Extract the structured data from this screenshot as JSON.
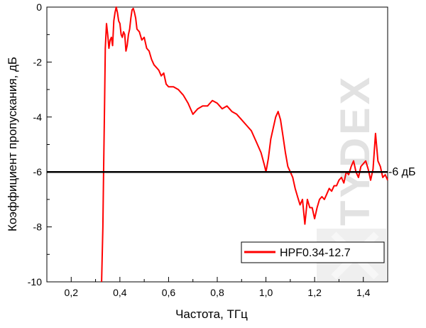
{
  "chart_data": {
    "type": "line",
    "title": "",
    "xlabel": "Частота, ТГц",
    "ylabel": "Коэффициент пропускания, дБ",
    "xlim": [
      0.1,
      1.5
    ],
    "ylim": [
      -10,
      0
    ],
    "xticks": [
      0.2,
      0.4,
      0.6,
      0.8,
      1.0,
      1.2,
      1.4
    ],
    "xtick_labels": [
      "0,2",
      "0,4",
      "0,6",
      "0,8",
      "1,0",
      "1,2",
      "1,4"
    ],
    "yticks": [
      0,
      -2,
      -4,
      -6,
      -8,
      -10
    ],
    "ytick_labels": [
      "0",
      "-2",
      "-4",
      "-6",
      "-8",
      "-10"
    ],
    "grid": false,
    "legend": {
      "placement": "bottom-right",
      "entries": [
        "HPF0.34-12.7"
      ]
    },
    "series": [
      {
        "name": "HPF0.34-12.7",
        "color": "#ff0000",
        "x": [
          0.325,
          0.33,
          0.333,
          0.337,
          0.34,
          0.345,
          0.35,
          0.355,
          0.36,
          0.365,
          0.37,
          0.375,
          0.38,
          0.385,
          0.39,
          0.395,
          0.4,
          0.405,
          0.41,
          0.415,
          0.42,
          0.425,
          0.43,
          0.435,
          0.44,
          0.445,
          0.45,
          0.455,
          0.46,
          0.465,
          0.47,
          0.48,
          0.49,
          0.5,
          0.51,
          0.52,
          0.53,
          0.54,
          0.55,
          0.56,
          0.57,
          0.58,
          0.59,
          0.6,
          0.62,
          0.64,
          0.66,
          0.68,
          0.7,
          0.72,
          0.74,
          0.76,
          0.78,
          0.8,
          0.82,
          0.84,
          0.86,
          0.88,
          0.9,
          0.92,
          0.94,
          0.96,
          0.98,
          0.995,
          1.0,
          1.01,
          1.02,
          1.04,
          1.05,
          1.06,
          1.07,
          1.08,
          1.09,
          1.1,
          1.11,
          1.12,
          1.13,
          1.14,
          1.15,
          1.16,
          1.17,
          1.18,
          1.19,
          1.2,
          1.21,
          1.22,
          1.23,
          1.24,
          1.25,
          1.26,
          1.27,
          1.28,
          1.29,
          1.3,
          1.31,
          1.32,
          1.33,
          1.34,
          1.35,
          1.36,
          1.37,
          1.38,
          1.39,
          1.4,
          1.41,
          1.42,
          1.43,
          1.44,
          1.45,
          1.46,
          1.47,
          1.48,
          1.49,
          1.5
        ],
        "y": [
          -10.0,
          -8.0,
          -6.0,
          -3.5,
          -1.5,
          -0.6,
          -1.0,
          -1.5,
          -1.2,
          -1.1,
          -1.4,
          -0.5,
          -0.2,
          0.0,
          -0.2,
          -0.5,
          -0.6,
          -1.0,
          -1.1,
          -0.9,
          -1.0,
          -1.6,
          -1.4,
          -1.0,
          -0.8,
          -0.4,
          -0.1,
          -0.05,
          -0.2,
          -0.4,
          -0.8,
          -0.9,
          -1.2,
          -1.1,
          -1.5,
          -1.6,
          -1.9,
          -2.1,
          -2.2,
          -2.3,
          -2.5,
          -2.4,
          -2.8,
          -2.9,
          -2.9,
          -3.0,
          -3.2,
          -3.5,
          -3.9,
          -3.7,
          -3.6,
          -3.6,
          -3.4,
          -3.5,
          -3.7,
          -3.6,
          -3.8,
          -3.9,
          -4.1,
          -4.3,
          -4.5,
          -4.9,
          -5.3,
          -5.8,
          -6.0,
          -5.5,
          -4.8,
          -4.0,
          -3.8,
          -4.1,
          -4.7,
          -5.3,
          -5.8,
          -6.0,
          -6.2,
          -6.6,
          -6.9,
          -7.2,
          -7.0,
          -7.9,
          -7.0,
          -7.3,
          -7.3,
          -7.7,
          -7.3,
          -7.0,
          -6.9,
          -7.0,
          -6.8,
          -6.6,
          -6.7,
          -6.5,
          -6.5,
          -6.3,
          -6.2,
          -6.4,
          -6.0,
          -6.1,
          -5.8,
          -5.6,
          -6.0,
          -6.2,
          -5.8,
          -5.7,
          -5.6,
          -5.9,
          -6.3,
          -5.9,
          -4.6,
          -5.6,
          -5.8,
          -6.2,
          -6.1,
          -6.3
        ]
      },
      {
        "name": "",
        "color": "#000000",
        "x": [
          0.1,
          1.5
        ],
        "y": [
          -6,
          -6
        ]
      }
    ],
    "annotations": [
      {
        "text": "-6 дБ",
        "x": 1.5,
        "y": -6
      }
    ]
  }
}
